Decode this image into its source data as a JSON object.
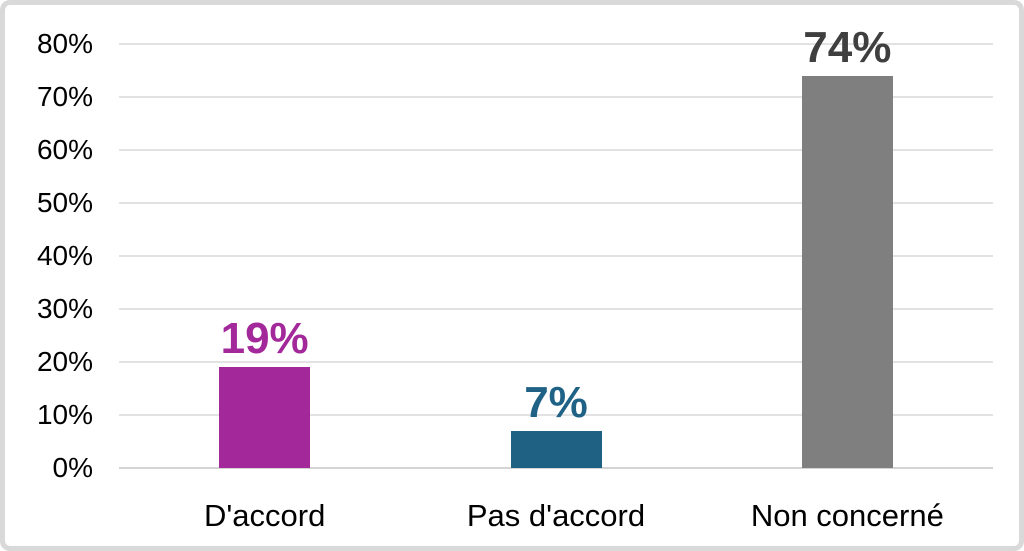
{
  "chart_data": {
    "type": "bar",
    "title": "",
    "xlabel": "",
    "ylabel": "",
    "categories": [
      "D'accord",
      "Pas d'accord",
      "Non concerné"
    ],
    "values": [
      19,
      7,
      74
    ],
    "value_labels": [
      "19%",
      "7%",
      "74%"
    ],
    "bar_colors": [
      "#a3299b",
      "#1f6183",
      "#7f7f7f"
    ],
    "value_label_colors": [
      "#a3299b",
      "#1f6286",
      "#3f3f3f"
    ],
    "ylim": [
      0,
      80
    ],
    "ytick_values": [
      0,
      10,
      20,
      30,
      40,
      50,
      60,
      70,
      80
    ],
    "ytick_labels": [
      "0%",
      "10%",
      "20%",
      "30%",
      "40%",
      "50%",
      "60%",
      "70%",
      "80%"
    ],
    "grid": "horizontal",
    "gridline_color": "#e2e2e2",
    "axis_line_color": "#d4d4d4",
    "tick_label_color": "#000000",
    "legend": "none",
    "background_color": "#ffffff",
    "frame_border_color": "#d9d9d9"
  }
}
